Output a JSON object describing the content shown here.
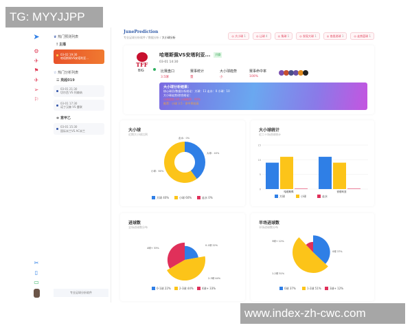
{
  "watermarks": {
    "top_left": "TG: MYYJJPP",
    "bottom_right": "www.index-zh-cwc.com"
  },
  "app": {
    "title": "JunePrediction",
    "breadcrumb": [
      "专业足球分析软件",
      "数据分析",
      "大小球分析"
    ]
  },
  "top_buttons": [
    {
      "label": "大小球",
      "count": "1"
    },
    {
      "label": "让球",
      "count": "4"
    },
    {
      "label": "角球",
      "count": "1"
    },
    {
      "label": "发现大球",
      "count": "1"
    },
    {
      "label": "各类进球",
      "count": "1"
    },
    {
      "label": "走势篮球",
      "count": "1"
    }
  ],
  "left_panel": {
    "hot_predictions_title": "热门预测列表",
    "group1": "主播",
    "active_item": {
      "time": "03-02 19:30",
      "title": "哈塔斯佩VS安塔利亚..."
    },
    "hot_analysis_title": "热门分析列表",
    "group2": "英超019",
    "items2": [
      {
        "time": "03-01 21:30",
        "title": "切尔西 VS 阿森纳"
      },
      {
        "time": "03-01 17:30",
        "title": "诺丁汉森  VS 曼联"
      }
    ],
    "group3": "意甲乙",
    "items3": [
      {
        "time": "03-01 15:30",
        "title": "国际米兰VS AC米兰"
      }
    ],
    "footer_button": "专业足球分析软件"
  },
  "match": {
    "title": "哈塔斯佩VS安塔利亚...",
    "badge": "开赛",
    "time": "03-01 14:30",
    "logo_text": "TFF",
    "logo_sub": "BIG",
    "stats": [
      {
        "label": "比赛盘口",
        "value": "3.5球"
      },
      {
        "label": "赛事统计",
        "value": "量"
      },
      {
        "label": "大小球趋势",
        "value": "小"
      },
      {
        "label": "赛事命中率",
        "value": "100%"
      }
    ],
    "analysis": {
      "title": "大小球分析结果：",
      "line1": "核心球员/数据分析结论：大球：11  走水：0  小球：10",
      "line2": "大小球走势/综合结论：",
      "line3": "小球趋势  0/6  小球概率：60%",
      "line4": "推荐：小球 3.5 · 命中率较高"
    }
  },
  "colors": {
    "blue": "#2f7fe6",
    "yellow": "#fcc419",
    "red": "#e0305a",
    "accent": "#e0405a"
  },
  "charts": {
    "donut": {
      "title": "大小球",
      "subtitle": "近期大小球比例",
      "legend": [
        {
          "name": "大球",
          "label": "大球 40%",
          "value": 40
        },
        {
          "name": "小球",
          "label": "小球 60%",
          "value": 60
        },
        {
          "name": "走水",
          "label": "走水 0%",
          "value": 0
        }
      ],
      "slice_labels": [
        "大球：40%",
        "小球：60%",
        "走水：0%"
      ]
    },
    "bar": {
      "title": "大小球统计",
      "subtitle": "近二十场进球统计",
      "categories": [
        "哈塔斯佩",
        "安塔利亚"
      ],
      "series": [
        {
          "name": "大球",
          "values": [
            9,
            11
          ]
        },
        {
          "name": "小球",
          "values": [
            11,
            9
          ]
        },
        {
          "name": "走水",
          "values": [
            0,
            0
          ]
        }
      ],
      "yticks": [
        "0",
        "5",
        "10",
        "15"
      ],
      "ylim": [
        0,
        15
      ]
    },
    "goals": {
      "title": "进球数",
      "subtitle": "全场进球数分布",
      "legend": [
        {
          "label": "0-1球 22%",
          "value": 22
        },
        {
          "label": "2-3球 44%",
          "value": 44
        },
        {
          "label": "4球+ 33%",
          "value": 33
        }
      ]
    },
    "half": {
      "title": "半场进球数",
      "subtitle": "半场进球数分布",
      "legend": [
        {
          "label": "0球 37%",
          "value": 37
        },
        {
          "label": "1-2球 51%",
          "value": 51
        },
        {
          "label": "3球+ 12%",
          "value": 12
        }
      ]
    }
  }
}
